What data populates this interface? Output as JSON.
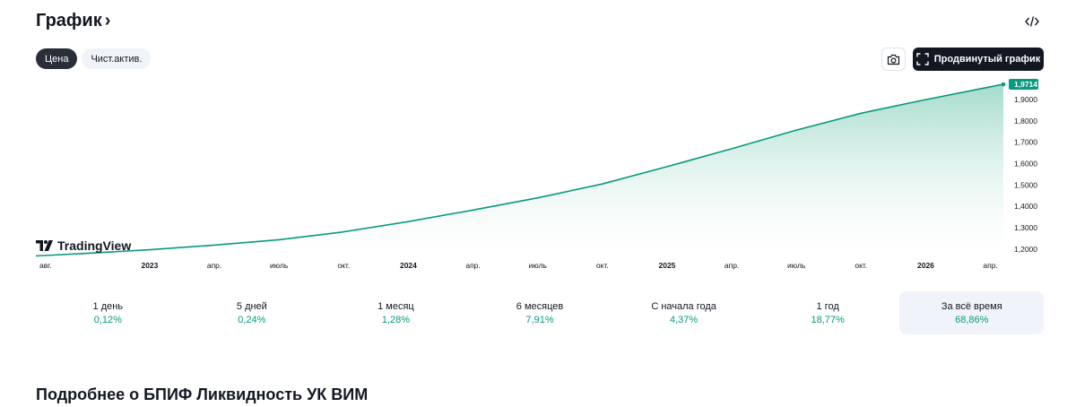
{
  "header": {
    "title": "График",
    "chevron": "›",
    "embed_icon": "code-icon"
  },
  "tabs": [
    {
      "label": "Цена",
      "active": true
    },
    {
      "label": "Чист.актив.",
      "active": false
    }
  ],
  "toolbar": {
    "camera_icon": "camera-icon",
    "advanced_label": "Продвинутый график",
    "advanced_icon": "fullscreen-icon"
  },
  "watermark": "TradingView",
  "colors": {
    "line": "#089981",
    "badge": "#089981",
    "fill_top": "#9fd9c9"
  },
  "chart_data": {
    "type": "area",
    "last_value_label": "1,9714",
    "y_ticks": [
      "1,9000",
      "1,8000",
      "1,7000",
      "1,6000",
      "1,5000",
      "1,4000",
      "1,3000",
      "1,2000"
    ],
    "y_tick_values": [
      1.9,
      1.8,
      1.7,
      1.6,
      1.5,
      1.4,
      1.3,
      1.2
    ],
    "ylim": [
      1.166,
      1.98
    ],
    "x_ticks": [
      {
        "label": "авг.",
        "bold": false
      },
      {
        "label": "2023",
        "bold": true
      },
      {
        "label": "апр.",
        "bold": false
      },
      {
        "label": "июль",
        "bold": false
      },
      {
        "label": "окт.",
        "bold": false
      },
      {
        "label": "2024",
        "bold": true
      },
      {
        "label": "апр.",
        "bold": false
      },
      {
        "label": "июль",
        "bold": false
      },
      {
        "label": "окт.",
        "bold": false
      },
      {
        "label": "2025",
        "bold": true
      },
      {
        "label": "апр.",
        "bold": false
      },
      {
        "label": "июль",
        "bold": false
      },
      {
        "label": "окт.",
        "bold": false
      },
      {
        "label": "2026",
        "bold": true
      },
      {
        "label": "апр.",
        "bold": false
      }
    ],
    "x_tick_months": [
      2022.583,
      2023.0,
      2023.25,
      2023.5,
      2023.75,
      2024.0,
      2024.25,
      2024.5,
      2024.75,
      2025.0,
      2025.25,
      2025.5,
      2025.75,
      2026.0,
      2026.25
    ],
    "xlim": [
      2022.56,
      2026.3
    ],
    "series": [
      {
        "x": [
          2022.56,
          2022.75,
          2023.0,
          2023.25,
          2023.5,
          2023.75,
          2024.0,
          2024.25,
          2024.5,
          2024.75,
          2025.0,
          2025.25,
          2025.5,
          2025.75,
          2026.0,
          2026.25,
          2026.3
        ],
        "values": [
          1.168,
          1.18,
          1.197,
          1.219,
          1.244,
          1.281,
          1.329,
          1.383,
          1.44,
          1.505,
          1.586,
          1.67,
          1.757,
          1.836,
          1.9,
          1.96,
          1.9714
        ]
      }
    ]
  },
  "periods": [
    {
      "label": "1 день",
      "value": "0,12%",
      "active": false
    },
    {
      "label": "5 дней",
      "value": "0,24%",
      "active": false
    },
    {
      "label": "1 месяц",
      "value": "1,28%",
      "active": false
    },
    {
      "label": "6 месяцев",
      "value": "7,91%",
      "active": false
    },
    {
      "label": "С начала года",
      "value": "4,37%",
      "active": false
    },
    {
      "label": "1 год",
      "value": "18,77%",
      "active": false
    },
    {
      "label": "За всё время",
      "value": "68,86%",
      "active": true
    }
  ],
  "about": {
    "title": "Подробнее о БПИФ Ликвидность УК ВИМ"
  }
}
